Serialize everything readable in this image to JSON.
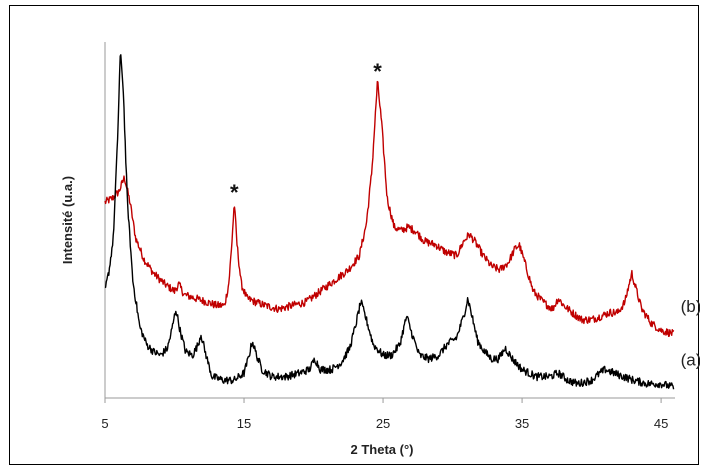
{
  "chart_data": {
    "type": "line",
    "title": "",
    "xlabel": "2 Theta (°)",
    "ylabel": "Intensité (u.a.)",
    "xlim": [
      5,
      46
    ],
    "xticks": [
      "5",
      "15",
      "25",
      "35",
      "45"
    ],
    "y_ticks_shown": false,
    "grid": false,
    "legend": "none",
    "series": [
      {
        "label": "(a)",
        "color": "#000000",
        "points": [
          [
            5.0,
            0.3
          ],
          [
            5.3,
            0.36
          ],
          [
            5.6,
            0.45
          ],
          [
            5.9,
            0.72
          ],
          [
            6.1,
            0.97
          ],
          [
            6.3,
            0.88
          ],
          [
            6.6,
            0.56
          ],
          [
            7.0,
            0.33
          ],
          [
            7.5,
            0.2
          ],
          [
            8.0,
            0.15
          ],
          [
            8.5,
            0.13
          ],
          [
            9.0,
            0.12
          ],
          [
            9.5,
            0.14
          ],
          [
            9.8,
            0.19
          ],
          [
            10.1,
            0.25
          ],
          [
            10.4,
            0.19
          ],
          [
            10.8,
            0.13
          ],
          [
            11.3,
            0.12
          ],
          [
            11.7,
            0.15
          ],
          [
            11.9,
            0.18
          ],
          [
            12.2,
            0.13
          ],
          [
            12.7,
            0.06
          ],
          [
            13.5,
            0.05
          ],
          [
            14.3,
            0.05
          ],
          [
            15.0,
            0.07
          ],
          [
            15.3,
            0.11
          ],
          [
            15.6,
            0.16
          ],
          [
            15.9,
            0.12
          ],
          [
            16.3,
            0.08
          ],
          [
            17.0,
            0.06
          ],
          [
            18.0,
            0.06
          ],
          [
            19.0,
            0.07
          ],
          [
            19.7,
            0.08
          ],
          [
            20.1,
            0.11
          ],
          [
            20.5,
            0.08
          ],
          [
            21.3,
            0.08
          ],
          [
            22.0,
            0.1
          ],
          [
            22.6,
            0.14
          ],
          [
            23.0,
            0.2
          ],
          [
            23.4,
            0.27
          ],
          [
            23.8,
            0.22
          ],
          [
            24.3,
            0.15
          ],
          [
            25.0,
            0.12
          ],
          [
            25.6,
            0.12
          ],
          [
            26.2,
            0.15
          ],
          [
            26.7,
            0.23
          ],
          [
            27.0,
            0.19
          ],
          [
            27.6,
            0.12
          ],
          [
            28.3,
            0.11
          ],
          [
            29.0,
            0.12
          ],
          [
            29.6,
            0.15
          ],
          [
            30.3,
            0.17
          ],
          [
            30.8,
            0.23
          ],
          [
            31.1,
            0.28
          ],
          [
            31.4,
            0.23
          ],
          [
            31.8,
            0.16
          ],
          [
            32.3,
            0.13
          ],
          [
            32.8,
            0.11
          ],
          [
            33.3,
            0.11
          ],
          [
            33.8,
            0.14
          ],
          [
            34.3,
            0.11
          ],
          [
            35.0,
            0.08
          ],
          [
            36.0,
            0.06
          ],
          [
            37.0,
            0.06
          ],
          [
            37.6,
            0.07
          ],
          [
            38.3,
            0.05
          ],
          [
            39.0,
            0.04
          ],
          [
            40.0,
            0.05
          ],
          [
            40.6,
            0.07
          ],
          [
            41.0,
            0.08
          ],
          [
            41.6,
            0.07
          ],
          [
            42.3,
            0.06
          ],
          [
            43.0,
            0.05
          ],
          [
            44.0,
            0.04
          ],
          [
            45.0,
            0.04
          ],
          [
            45.9,
            0.03
          ]
        ]
      },
      {
        "label": "(b)",
        "color": "#c00000",
        "points": [
          [
            5.0,
            0.55
          ],
          [
            5.5,
            0.56
          ],
          [
            6.0,
            0.58
          ],
          [
            6.4,
            0.62
          ],
          [
            6.8,
            0.55
          ],
          [
            7.2,
            0.45
          ],
          [
            7.8,
            0.39
          ],
          [
            8.5,
            0.35
          ],
          [
            9.3,
            0.32
          ],
          [
            10.0,
            0.3
          ],
          [
            10.3,
            0.32
          ],
          [
            10.7,
            0.29
          ],
          [
            11.5,
            0.28
          ],
          [
            12.3,
            0.27
          ],
          [
            13.0,
            0.26
          ],
          [
            13.6,
            0.26
          ],
          [
            13.9,
            0.32
          ],
          [
            14.1,
            0.42
          ],
          [
            14.3,
            0.55
          ],
          [
            14.5,
            0.43
          ],
          [
            14.8,
            0.32
          ],
          [
            15.2,
            0.28
          ],
          [
            15.8,
            0.27
          ],
          [
            16.5,
            0.26
          ],
          [
            17.5,
            0.25
          ],
          [
            18.5,
            0.26
          ],
          [
            19.5,
            0.27
          ],
          [
            20.5,
            0.3
          ],
          [
            21.5,
            0.33
          ],
          [
            22.5,
            0.36
          ],
          [
            23.3,
            0.4
          ],
          [
            23.8,
            0.49
          ],
          [
            24.2,
            0.64
          ],
          [
            24.6,
            0.89
          ],
          [
            24.9,
            0.77
          ],
          [
            25.3,
            0.56
          ],
          [
            25.8,
            0.48
          ],
          [
            26.3,
            0.47
          ],
          [
            26.8,
            0.48
          ],
          [
            27.3,
            0.47
          ],
          [
            28.0,
            0.44
          ],
          [
            28.8,
            0.43
          ],
          [
            29.5,
            0.41
          ],
          [
            30.3,
            0.4
          ],
          [
            30.8,
            0.44
          ],
          [
            31.2,
            0.46
          ],
          [
            31.6,
            0.44
          ],
          [
            32.2,
            0.4
          ],
          [
            32.8,
            0.37
          ],
          [
            33.4,
            0.36
          ],
          [
            34.0,
            0.38
          ],
          [
            34.5,
            0.42
          ],
          [
            34.8,
            0.43
          ],
          [
            35.2,
            0.38
          ],
          [
            35.8,
            0.3
          ],
          [
            36.5,
            0.27
          ],
          [
            37.2,
            0.25
          ],
          [
            37.6,
            0.28
          ],
          [
            38.0,
            0.26
          ],
          [
            38.6,
            0.24
          ],
          [
            39.3,
            0.22
          ],
          [
            40.0,
            0.22
          ],
          [
            40.7,
            0.23
          ],
          [
            41.3,
            0.24
          ],
          [
            41.9,
            0.24
          ],
          [
            42.4,
            0.27
          ],
          [
            42.7,
            0.32
          ],
          [
            42.9,
            0.35
          ],
          [
            43.1,
            0.32
          ],
          [
            43.6,
            0.25
          ],
          [
            44.3,
            0.21
          ],
          [
            45.0,
            0.19
          ],
          [
            45.9,
            0.18
          ]
        ]
      }
    ],
    "annotations": [
      {
        "text": "*",
        "x": 14.3
      },
      {
        "text": "*",
        "x": 24.6
      }
    ]
  }
}
